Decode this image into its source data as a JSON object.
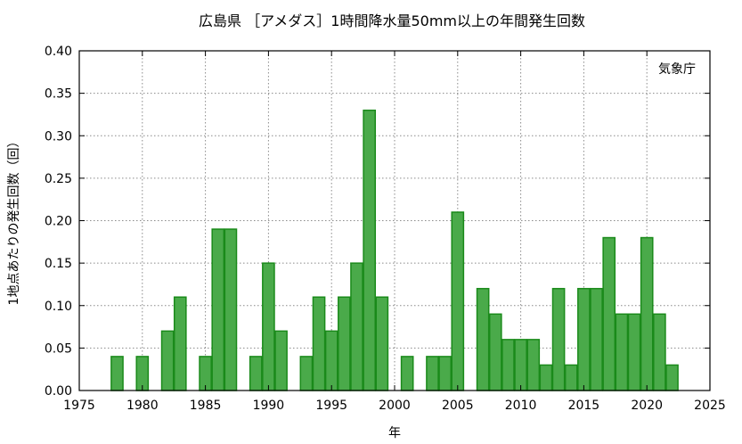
{
  "chart_data": {
    "type": "bar",
    "title": "広島県 ［アメダス］1時間降水量50mm以上の年間発生回数",
    "xlabel": "年",
    "ylabel": "1地点あたりの発生回数（回）",
    "annotation": "気象庁",
    "xlim": [
      1975,
      2025
    ],
    "ylim": [
      0,
      0.4
    ],
    "x_ticks": [
      "1975",
      "1980",
      "1985",
      "1990",
      "1995",
      "2000",
      "2005",
      "2010",
      "2015",
      "2020",
      "2025"
    ],
    "y_ticks": [
      "0.00",
      "0.05",
      "0.10",
      "0.15",
      "0.20",
      "0.25",
      "0.30",
      "0.35",
      "0.40"
    ],
    "grid": true,
    "bar_color": "#4aaa4a",
    "bar_edge_color": "#1a8a1a",
    "years": [
      1976,
      1977,
      1978,
      1979,
      1980,
      1981,
      1982,
      1983,
      1984,
      1985,
      1986,
      1987,
      1988,
      1989,
      1990,
      1991,
      1992,
      1993,
      1994,
      1995,
      1996,
      1997,
      1998,
      1999,
      2000,
      2001,
      2002,
      2003,
      2004,
      2005,
      2006,
      2007,
      2008,
      2009,
      2010,
      2011,
      2012,
      2013,
      2014,
      2015,
      2016,
      2017,
      2018,
      2019,
      2020,
      2021,
      2022,
      2023
    ],
    "values": [
      0,
      0,
      0.04,
      0,
      0.04,
      0,
      0.07,
      0.11,
      0,
      0.04,
      0.19,
      0.19,
      0,
      0.04,
      0.15,
      0.07,
      0,
      0.04,
      0.11,
      0.07,
      0.11,
      0.15,
      0.33,
      0.11,
      0,
      0.04,
      0,
      0.04,
      0.04,
      0.21,
      0,
      0.12,
      0.09,
      0.06,
      0.06,
      0.06,
      0.03,
      0.12,
      0.03,
      0.12,
      0.12,
      0.18,
      0.09,
      0.09,
      0.18,
      0.09,
      0.03,
      0
    ]
  }
}
